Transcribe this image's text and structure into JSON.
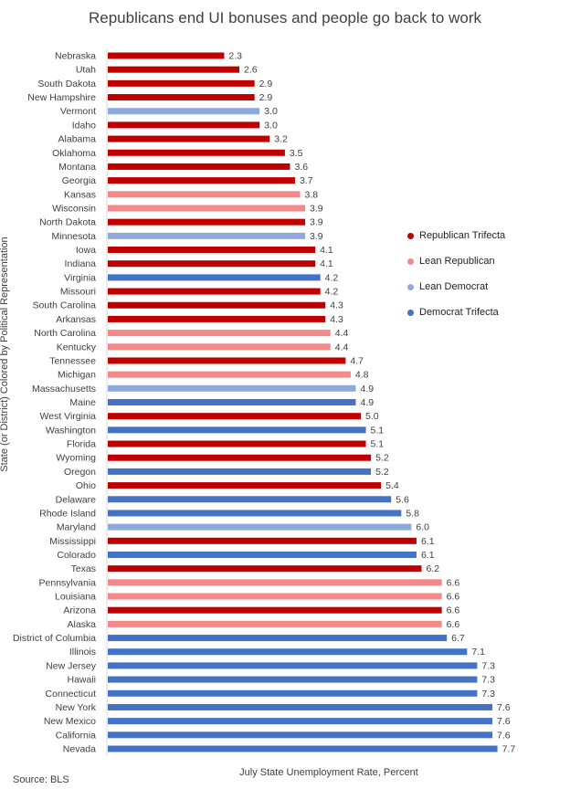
{
  "chart_data": {
    "type": "bar",
    "orientation": "horizontal",
    "title": "Republicans end UI bonuses and people go back to work",
    "xlabel": "July State Unemployment  Rate, Percent",
    "ylabel": "State (or District) Colored by Political Representation",
    "source": "Source: BLS",
    "xlim": [
      0,
      8
    ],
    "legend": {
      "placement": "right",
      "entries": [
        {
          "key": "RT",
          "label": "Republican Trifecta",
          "color": "#C00000"
        },
        {
          "key": "LR",
          "label": "Lean Republican",
          "color": "#F4898A"
        },
        {
          "key": "LD",
          "label": "Lean Democrat",
          "color": "#8EA9DB"
        },
        {
          "key": "DT",
          "label": "Democrat Trifecta",
          "color": "#4472C4"
        }
      ]
    },
    "categories": [
      "Nebraska",
      "Utah",
      "South Dakota",
      "New Hampshire",
      "Vermont",
      "Idaho",
      "Alabama",
      "Oklahoma",
      "Montana",
      "Georgia",
      "Kansas",
      "Wisconsin",
      "North Dakota",
      "Minnesota",
      "Iowa",
      "Indiana",
      "Virginia",
      "Missouri",
      "South Carolina",
      "Arkansas",
      "North Carolina",
      "Kentucky",
      "Tennessee",
      "Michigan",
      "Massachusetts",
      "Maine",
      "West Virginia",
      "Washington",
      "Florida",
      "Wyoming",
      "Oregon",
      "Ohio",
      "Delaware",
      "Rhode Island",
      "Maryland",
      "Mississippi",
      "Colorado",
      "Texas",
      "Pennsylvania",
      "Louisiana",
      "Arizona",
      "Alaska",
      "District of Columbia",
      "Illinois",
      "New Jersey",
      "Hawaii",
      "Connecticut",
      "New York",
      "New Mexico",
      "California",
      "Nevada"
    ],
    "values": [
      2.3,
      2.6,
      2.9,
      2.9,
      3.0,
      3.0,
      3.2,
      3.5,
      3.6,
      3.7,
      3.8,
      3.9,
      3.9,
      3.9,
      4.1,
      4.1,
      4.2,
      4.2,
      4.3,
      4.3,
      4.4,
      4.4,
      4.7,
      4.8,
      4.9,
      4.9,
      5.0,
      5.1,
      5.1,
      5.2,
      5.2,
      5.4,
      5.6,
      5.8,
      6.0,
      6.1,
      6.1,
      6.2,
      6.6,
      6.6,
      6.6,
      6.6,
      6.7,
      7.1,
      7.3,
      7.3,
      7.3,
      7.6,
      7.6,
      7.6,
      7.7
    ],
    "value_labels": [
      "2.3",
      "2.6",
      "2.9",
      "2.9",
      "3.0",
      "3.0",
      "3.2",
      "3.5",
      "3.6",
      "3.7",
      "3.8",
      "3.9",
      "3.9",
      "3.9",
      "4.1",
      "4.1",
      "4.2",
      "4.2",
      "4.3",
      "4.3",
      "4.4",
      "4.4",
      "4.7",
      "4.8",
      "4.9",
      "4.9",
      "5.0",
      "5.1",
      "5.1",
      "5.2",
      "5.2",
      "5.4",
      "5.6",
      "5.8",
      "6.0",
      "6.1",
      "6.1",
      "6.2",
      "6.6",
      "6.6",
      "6.6",
      "6.6",
      "6.7",
      "7.1",
      "7.3",
      "7.3",
      "7.3",
      "7.6",
      "7.6",
      "7.6",
      "7.7"
    ],
    "groups": [
      "RT",
      "RT",
      "RT",
      "RT",
      "LD",
      "RT",
      "RT",
      "RT",
      "RT",
      "RT",
      "LR",
      "LR",
      "RT",
      "LD",
      "RT",
      "RT",
      "DT",
      "RT",
      "RT",
      "RT",
      "LR",
      "LR",
      "RT",
      "LR",
      "LD",
      "DT",
      "RT",
      "DT",
      "RT",
      "RT",
      "DT",
      "RT",
      "DT",
      "DT",
      "LD",
      "RT",
      "DT",
      "RT",
      "LR",
      "LR",
      "RT",
      "LR",
      "DT",
      "DT",
      "DT",
      "DT",
      "DT",
      "DT",
      "DT",
      "DT",
      "DT"
    ]
  }
}
